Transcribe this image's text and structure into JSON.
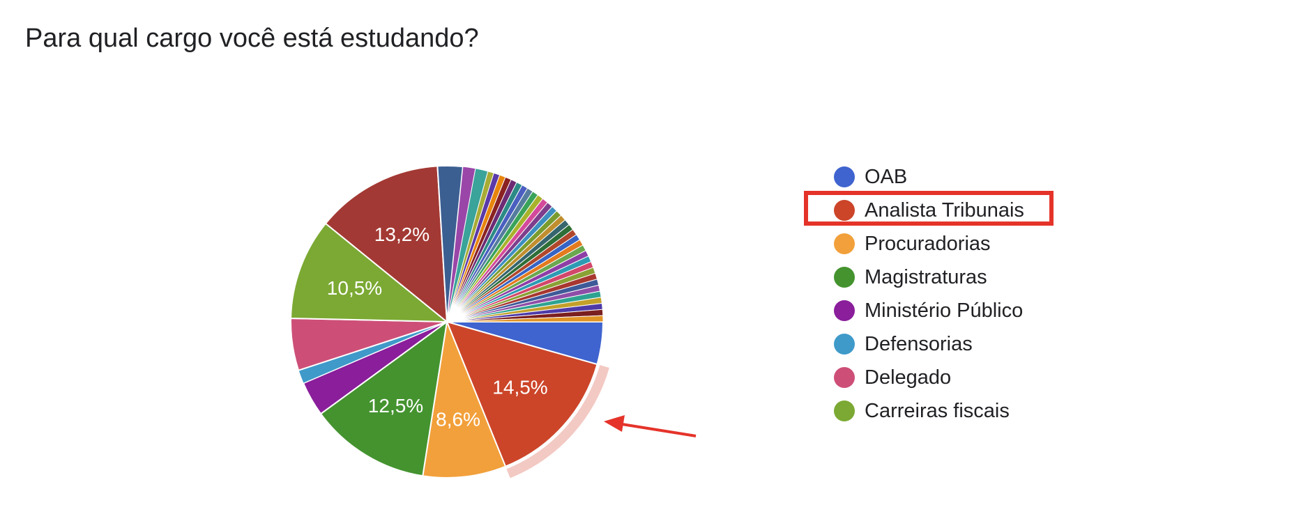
{
  "chart_data": {
    "type": "pie",
    "title": "Para qual cargo você está estudando?",
    "slices": [
      {
        "label": "OAB",
        "value": 4.4,
        "color": "#3f64cf",
        "data_label": ""
      },
      {
        "label": "Analista Tribunais",
        "value": 14.5,
        "color": "#cc4529",
        "data_label": "14,5%"
      },
      {
        "label": "Procuradorias",
        "value": 8.6,
        "color": "#f2a03b",
        "data_label": "8,6%"
      },
      {
        "label": "Magistraturas",
        "value": 12.5,
        "color": "#44932f",
        "data_label": "12,5%"
      },
      {
        "label": "Ministério Público",
        "value": 3.6,
        "color": "#8a1e9b",
        "data_label": ""
      },
      {
        "label": "Defensorias",
        "value": 1.4,
        "color": "#3f9ac9",
        "data_label": ""
      },
      {
        "label": "Delegado",
        "value": 5.4,
        "color": "#cd4f77",
        "data_label": ""
      },
      {
        "label": "Carreiras fiscais",
        "value": 10.5,
        "color": "#7ba933",
        "data_label": "10,5%"
      },
      {
        "label": "",
        "value": 13.2,
        "color": "#a33934",
        "data_label": "13,2%"
      },
      {
        "label": "",
        "value": 2.6,
        "color": "#3c5f92",
        "data_label": ""
      },
      {
        "label": "",
        "value": 1.3,
        "color": "#9a46a8",
        "data_label": ""
      },
      {
        "label": "",
        "value": 1.3,
        "color": "#3aa39a",
        "data_label": ""
      },
      {
        "label": "",
        "value": 0.63,
        "color": "#a8ab35",
        "data_label": ""
      },
      {
        "label": "",
        "value": 0.63,
        "color": "#5a39a8",
        "data_label": ""
      },
      {
        "label": "",
        "value": 0.63,
        "color": "#e8850d",
        "data_label": ""
      },
      {
        "label": "",
        "value": 0.63,
        "color": "#8a2222",
        "data_label": ""
      },
      {
        "label": "",
        "value": 0.63,
        "color": "#6d2b74",
        "data_label": ""
      },
      {
        "label": "",
        "value": 0.63,
        "color": "#2c8a86",
        "data_label": ""
      },
      {
        "label": "",
        "value": 0.63,
        "color": "#4a5fc0",
        "data_label": ""
      },
      {
        "label": "",
        "value": 0.63,
        "color": "#557c9e",
        "data_label": ""
      },
      {
        "label": "",
        "value": 0.63,
        "color": "#3aa35a",
        "data_label": ""
      },
      {
        "label": "",
        "value": 0.63,
        "color": "#a8b32c",
        "data_label": ""
      },
      {
        "label": "",
        "value": 0.63,
        "color": "#d44a9a",
        "data_label": ""
      },
      {
        "label": "",
        "value": 0.63,
        "color": "#7e3e8c",
        "data_label": ""
      },
      {
        "label": "",
        "value": 0.63,
        "color": "#3d8fc0",
        "data_label": ""
      },
      {
        "label": "",
        "value": 0.63,
        "color": "#7a9c2e",
        "data_label": ""
      },
      {
        "label": "",
        "value": 0.63,
        "color": "#c08e2e",
        "data_label": ""
      },
      {
        "label": "",
        "value": 0.63,
        "color": "#36656e",
        "data_label": ""
      },
      {
        "label": "",
        "value": 0.63,
        "color": "#2e6e38",
        "data_label": ""
      },
      {
        "label": "",
        "value": 0.63,
        "color": "#b0472c",
        "data_label": ""
      },
      {
        "label": "",
        "value": 0.63,
        "color": "#3764c4",
        "data_label": ""
      },
      {
        "label": "",
        "value": 0.63,
        "color": "#e37a1e",
        "data_label": ""
      },
      {
        "label": "",
        "value": 0.63,
        "color": "#6aa84f",
        "data_label": ""
      },
      {
        "label": "",
        "value": 0.63,
        "color": "#8e3fa6",
        "data_label": ""
      },
      {
        "label": "",
        "value": 0.63,
        "color": "#2d9bb3",
        "data_label": ""
      },
      {
        "label": "",
        "value": 0.63,
        "color": "#d2476b",
        "data_label": ""
      },
      {
        "label": "",
        "value": 0.63,
        "color": "#8aa134",
        "data_label": ""
      },
      {
        "label": "",
        "value": 0.63,
        "color": "#a8372f",
        "data_label": ""
      },
      {
        "label": "",
        "value": 0.63,
        "color": "#3e5a99",
        "data_label": ""
      },
      {
        "label": "",
        "value": 0.63,
        "color": "#8e4ea8",
        "data_label": ""
      },
      {
        "label": "",
        "value": 0.63,
        "color": "#2fa391",
        "data_label": ""
      },
      {
        "label": "",
        "value": 0.63,
        "color": "#c2a02a",
        "data_label": ""
      },
      {
        "label": "",
        "value": 0.63,
        "color": "#4d3aa8",
        "data_label": ""
      },
      {
        "label": "",
        "value": 0.63,
        "color": "#7a1f1f",
        "data_label": ""
      },
      {
        "label": "",
        "value": 0.63,
        "color": "#e09425",
        "data_label": ""
      }
    ],
    "legend_position": "right",
    "highlighted_slice": "Analista Tribunais"
  },
  "legend": {
    "items": [
      {
        "label": "OAB",
        "color": "#3f64cf"
      },
      {
        "label": "Analista Tribunais",
        "color": "#cc4529"
      },
      {
        "label": "Procuradorias",
        "color": "#f2a03b"
      },
      {
        "label": "Magistraturas",
        "color": "#44932f"
      },
      {
        "label": "Ministério Público",
        "color": "#8a1e9b"
      },
      {
        "label": "Defensorias",
        "color": "#3f9ac9"
      },
      {
        "label": "Delegado",
        "color": "#cd4f77"
      },
      {
        "label": "Carreiras fiscais",
        "color": "#7ba933"
      }
    ]
  },
  "annotations": {
    "highlight_box_color": "#e5332a",
    "arrow_color": "#e5332a",
    "highlight_ring_color": "#f3c9c3"
  }
}
